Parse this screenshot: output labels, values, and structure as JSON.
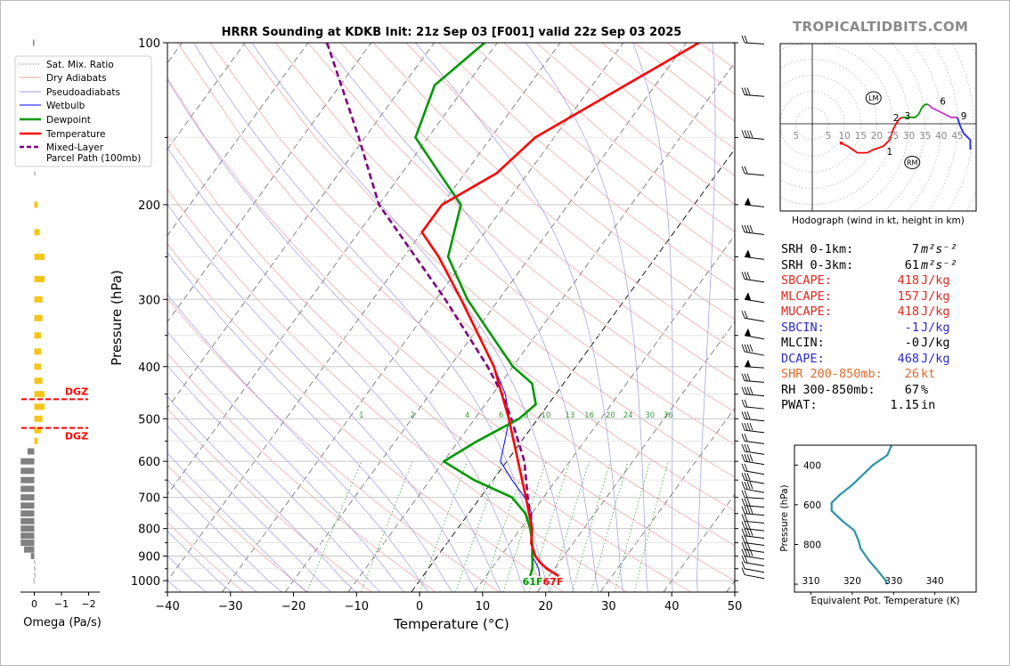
{
  "title": "HRRR Sounding at KDKB Init: 21z Sep 03 [F001] valid 22z Sep 03 2025",
  "brand": "TROPICALTIDBITS.COM",
  "colors": {
    "temperature": "#ff0000",
    "dewpoint": "#009900",
    "wetbulb": "#0000ff",
    "parcel": "#800080",
    "dry_adiabat": "#e8a0a0",
    "moist_adiabat": "#9a9ae0",
    "mixing_ratio": "#3a9a3a",
    "omega_pos": "#f5c518",
    "omega_neg": "#808080",
    "dgz": "#ff0000",
    "theta_e": "#2b93a8",
    "stat_red": "#e0281e",
    "stat_blue": "#2a2ad0",
    "stat_orange": "#e06a28"
  },
  "chart_data": [
    {
      "id": "skewt",
      "type": "line",
      "title": "HRRR Sounding at KDKB Init: 21z Sep 03 [F001] valid 22z Sep 03 2025",
      "xlabel": "Temperature (°C)",
      "ylabel": "Pressure (hPa)",
      "xlim": [
        -40,
        50
      ],
      "ylim": [
        1050,
        100
      ],
      "y_scale": "log",
      "x_ticks": [
        -40,
        -30,
        -20,
        -10,
        0,
        10,
        20,
        30,
        40,
        50
      ],
      "y_ticks": [
        100,
        200,
        300,
        400,
        500,
        600,
        700,
        800,
        900,
        1000
      ],
      "x_tick_labels": [
        "−40",
        "−30",
        "−20",
        "−10",
        "0",
        "10",
        "20",
        "30",
        "40",
        "50"
      ],
      "grid": true,
      "legend_position": "top-left",
      "legend": [
        {
          "label": "Sat. Mix. Ratio",
          "style": "dotted",
          "color": "#3a9a3a"
        },
        {
          "label": "Dry Adiabats",
          "style": "solid",
          "color": "#e8a0a0"
        },
        {
          "label": "Pseudoadiabats",
          "style": "solid",
          "color": "#9a9ae0"
        },
        {
          "label": "Wetbulb",
          "style": "solid",
          "color": "#0000ff"
        },
        {
          "label": "Dewpoint",
          "style": "solid",
          "color": "#009900"
        },
        {
          "label": "Temperature",
          "style": "solid",
          "color": "#ff0000"
        },
        {
          "label": "Mixed-Layer\nParcel Path (100mb)",
          "style": "dashed",
          "color": "#800080"
        }
      ],
      "mixing_ratio_labels": [
        "1",
        "2",
        "4",
        "6",
        "8",
        "10",
        "13",
        "16",
        "20",
        "24",
        "30",
        "36"
      ],
      "mixing_ratio_values": [
        1,
        2,
        4,
        6,
        8,
        10,
        13,
        16,
        20,
        24,
        30,
        36
      ],
      "surface_labels": {
        "dewpoint": "61F",
        "temperature": "67F"
      },
      "series": [
        {
          "name": "Temperature",
          "p": [
            980,
            950,
            925,
            900,
            850,
            800,
            700,
            600,
            500,
            400,
            300,
            250,
            225,
            200,
            175,
            150,
            100
          ],
          "t": [
            21.5,
            18.8,
            17,
            15.5,
            13.3,
            11.8,
            7.2,
            1.8,
            -4.6,
            -13,
            -26,
            -34.5,
            -40,
            -40,
            -35,
            -33,
            -18
          ]
        },
        {
          "name": "Dewpoint",
          "p": [
            980,
            950,
            925,
            900,
            850,
            800,
            750,
            700,
            650,
            600,
            550,
            500,
            470,
            430,
            400,
            350,
            300,
            250,
            200,
            175,
            150,
            120,
            100
          ],
          "t": [
            17,
            16.5,
            15.8,
            15,
            13.5,
            11.5,
            9,
            5,
            -3,
            -10,
            -7,
            -3,
            -2,
            -5,
            -10,
            -17,
            -25,
            -33,
            -37,
            -44,
            -52,
            -55,
            -52
          ]
        },
        {
          "name": "Wetbulb",
          "p": [
            980,
            950,
            925,
            900,
            850,
            800,
            750,
            700,
            650,
            600,
            500,
            450,
            400,
            350,
            300
          ],
          "t": [
            18.5,
            17.5,
            16.3,
            15,
            13.4,
            11.7,
            10,
            7,
            3,
            -1,
            -4.5,
            -8,
            -13,
            -19,
            -26
          ]
        },
        {
          "name": "Mixed-Layer\nParcel Path (100mb)",
          "p": [
            980,
            950,
            925,
            900,
            850,
            800,
            700,
            600,
            500,
            450,
            400,
            300,
            200,
            150,
            100
          ],
          "t": [
            21.5,
            18.8,
            17,
            15.5,
            13.3,
            11.8,
            7.5,
            2.8,
            -4.2,
            -8.5,
            -14,
            -28.5,
            -50,
            -61,
            -77
          ]
        }
      ]
    },
    {
      "id": "omega",
      "type": "bar",
      "xlabel": "Omega (Pa/s)",
      "x_ticks": [
        0,
        -1,
        -2
      ],
      "x_tick_labels": [
        "0",
        "−1",
        "−2"
      ],
      "xlim": [
        0.2,
        -2.2
      ],
      "dgz_label": "DGZ",
      "dgz_levels": [
        460,
        520
      ],
      "levels": [
        100,
        150,
        175,
        200,
        225,
        250,
        275,
        300,
        325,
        350,
        375,
        400,
        425,
        450,
        475,
        500,
        525,
        550,
        575,
        600,
        625,
        650,
        675,
        700,
        725,
        750,
        775,
        800,
        825,
        850,
        875,
        900,
        925,
        950,
        975,
        1000
      ],
      "values": [
        0.02,
        0.0,
        0.0,
        -0.05,
        -0.08,
        -0.15,
        -0.15,
        -0.12,
        -0.12,
        -0.1,
        -0.1,
        -0.1,
        -0.12,
        -0.15,
        -0.15,
        -0.12,
        -0.1,
        -0.05,
        0.1,
        0.2,
        0.2,
        0.2,
        0.2,
        0.2,
        0.2,
        0.2,
        0.2,
        0.2,
        0.2,
        0.2,
        0.15,
        0.05,
        0.0,
        0.0,
        0.0,
        0.01
      ]
    },
    {
      "id": "hodograph",
      "type": "line",
      "xlabel": "Hodograph (wind in kt, height in km)",
      "ring_labels": [
        "5",
        "5",
        "10",
        "15",
        "20",
        "25",
        "30",
        "35",
        "40",
        "45"
      ],
      "rings": [
        5,
        10,
        15,
        20,
        25,
        30,
        35,
        40,
        45,
        50,
        55
      ],
      "height_labels": [
        "1",
        "2",
        "3",
        "6",
        "9"
      ],
      "storm_motion": [
        {
          "label": "LM",
          "u": 19,
          "v": 8
        },
        {
          "label": "RM",
          "u": 31,
          "v": -12
        }
      ],
      "series": [
        {
          "name": "0-2 km",
          "color": "#ff0000",
          "u": [
            9,
            11,
            14,
            17,
            19,
            22,
            24,
            25,
            26
          ],
          "v": [
            -6,
            -7,
            -9,
            -9,
            -8,
            -7,
            -5,
            -2,
            0
          ]
        },
        {
          "name": "2-3 km",
          "color": "#ff0000",
          "u": [
            26,
            27,
            28
          ],
          "v": [
            0,
            1.5,
            2
          ]
        },
        {
          "name": "3-6 km",
          "color": "#009900",
          "u": [
            28,
            30,
            32,
            33,
            34,
            35,
            36
          ],
          "v": [
            2,
            2,
            2,
            3,
            5,
            6,
            6
          ]
        },
        {
          "name": "6-9 km",
          "color": "#cc33cc",
          "u": [
            36,
            37,
            39,
            41,
            43,
            45
          ],
          "v": [
            6,
            5,
            4,
            3,
            2,
            2
          ]
        },
        {
          "name": "9+ km",
          "color": "#2222ff",
          "u": [
            45,
            46,
            47,
            49,
            49
          ],
          "v": [
            2,
            -1,
            -3,
            -5,
            -8
          ]
        }
      ]
    },
    {
      "id": "theta_e",
      "type": "line",
      "xlabel": "Equivalent Pot. Temperature (K)",
      "ylabel": "Pressure (hPa)",
      "xlim": [
        306,
        350
      ],
      "ylim": [
        1040,
        300
      ],
      "x_ticks": [
        310,
        320,
        330,
        340
      ],
      "y_ticks": [
        400,
        600,
        800
      ],
      "series": [
        {
          "name": "theta-e",
          "x": [
            329.5,
            328.5,
            325,
            322.5,
            320,
            317,
            315,
            315,
            317.5,
            320.5,
            321.5,
            322,
            324,
            326.5,
            328,
            328.5
          ],
          "p": [
            300,
            350,
            400,
            450,
            500,
            550,
            590,
            630,
            680,
            730,
            780,
            820,
            880,
            940,
            980,
            1000
          ]
        }
      ]
    }
  ],
  "stats": [
    {
      "label": "SRH 0-1km:",
      "value": "7",
      "unit": "m²s⁻²",
      "color": "#000000"
    },
    {
      "label": "SRH 0-3km:",
      "value": "61",
      "unit": "m²s⁻²",
      "color": "#000000"
    },
    {
      "label": "SBCAPE:",
      "value": "418",
      "unit": "J/kg",
      "color": "#e0281e"
    },
    {
      "label": "MLCAPE:",
      "value": "157",
      "unit": "J/kg",
      "color": "#e0281e"
    },
    {
      "label": "MUCAPE:",
      "value": "418",
      "unit": "J/kg",
      "color": "#e0281e"
    },
    {
      "label": "SBCIN:",
      "value": "-1",
      "unit": "J/kg",
      "color": "#2a2ad0"
    },
    {
      "label": "MLCIN:",
      "value": "-0",
      "unit": "J/kg",
      "color": "#000000"
    },
    {
      "label": "DCAPE:",
      "value": "468",
      "unit": "J/kg",
      "color": "#2a2ad0"
    },
    {
      "label": "SHR 200-850mb:",
      "value": "26",
      "unit": "kt",
      "color": "#e06a28"
    },
    {
      "label": "RH 300-850mb:",
      "value": "67",
      "unit": "%",
      "color": "#000000"
    },
    {
      "label": "PWAT:",
      "value": "1.15",
      "unit": "in",
      "color": "#000000"
    }
  ]
}
